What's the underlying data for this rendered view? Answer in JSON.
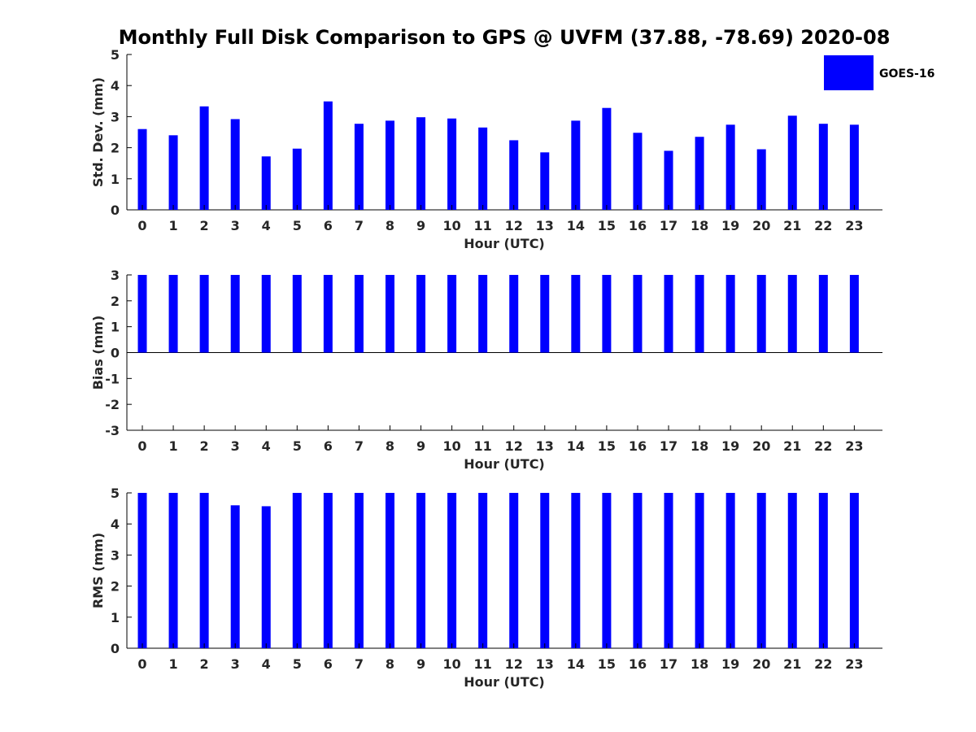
{
  "title": "Monthly Full Disk Comparison to GPS @ UVFM (37.88, -78.69) 2020-08",
  "legend": {
    "label": "GOES-16",
    "color": "#0000ff"
  },
  "chart_data": [
    {
      "type": "bar",
      "name": "std",
      "ylabel": "Std. Dev. (mm)",
      "xlabel": "Hour (UTC)",
      "categories": [
        "0",
        "1",
        "2",
        "3",
        "4",
        "5",
        "6",
        "7",
        "8",
        "9",
        "10",
        "11",
        "12",
        "13",
        "14",
        "15",
        "16",
        "17",
        "18",
        "19",
        "20",
        "21",
        "22",
        "23"
      ],
      "series": [
        {
          "name": "GOES-16",
          "values": [
            2.6,
            2.4,
            3.33,
            2.92,
            1.72,
            1.97,
            3.49,
            2.77,
            2.87,
            2.98,
            2.94,
            2.65,
            2.24,
            1.85,
            2.87,
            3.28,
            2.48,
            1.9,
            2.35,
            2.74,
            1.95,
            3.03,
            2.77,
            2.74
          ]
        }
      ],
      "ylim": [
        0,
        5
      ],
      "yticks": [
        "0",
        "1",
        "2",
        "3",
        "4",
        "5"
      ],
      "zero_line": false
    },
    {
      "type": "bar",
      "name": "bias",
      "ylabel": "Bias (mm)",
      "xlabel": "Hour (UTC)",
      "categories": [
        "0",
        "1",
        "2",
        "3",
        "4",
        "5",
        "6",
        "7",
        "8",
        "9",
        "10",
        "11",
        "12",
        "13",
        "14",
        "15",
        "16",
        "17",
        "18",
        "19",
        "20",
        "21",
        "22",
        "23"
      ],
      "series": [
        {
          "name": "GOES-16",
          "values": [
            3,
            3,
            3,
            3,
            3,
            3,
            3,
            3,
            3,
            3,
            3,
            3,
            3,
            3,
            3,
            3,
            3,
            3,
            3,
            3,
            3,
            3,
            3,
            3
          ]
        }
      ],
      "ylim": [
        -3,
        3
      ],
      "yticks": [
        "-3",
        "-2",
        "-1",
        "0",
        "1",
        "2",
        "3"
      ],
      "zero_line": true
    },
    {
      "type": "bar",
      "name": "rms",
      "ylabel": "RMS (mm)",
      "xlabel": "Hour (UTC)",
      "categories": [
        "0",
        "1",
        "2",
        "3",
        "4",
        "5",
        "6",
        "7",
        "8",
        "9",
        "10",
        "11",
        "12",
        "13",
        "14",
        "15",
        "16",
        "17",
        "18",
        "19",
        "20",
        "21",
        "22",
        "23"
      ],
      "series": [
        {
          "name": "GOES-16",
          "values": [
            5,
            5,
            5,
            4.6,
            4.57,
            5,
            5,
            5,
            5,
            5,
            5,
            5,
            5,
            5,
            5,
            5,
            5,
            5,
            5,
            5,
            5,
            5,
            5,
            5
          ]
        }
      ],
      "ylim": [
        0,
        5
      ],
      "yticks": [
        "0",
        "1",
        "2",
        "3",
        "4",
        "5"
      ],
      "zero_line": false
    }
  ]
}
